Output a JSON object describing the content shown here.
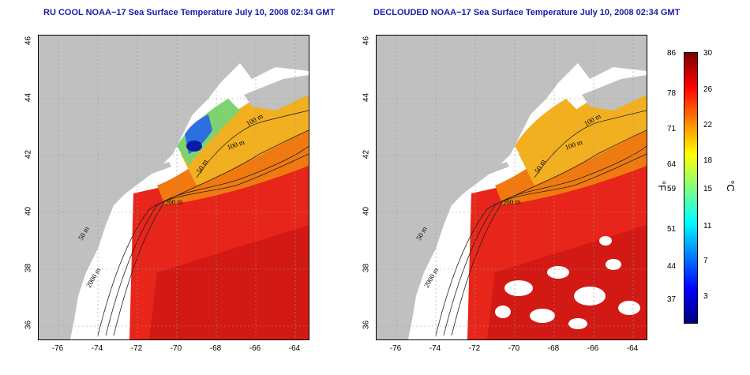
{
  "panels": [
    {
      "title": "RU COOL NOAA−17 Sea Surface Temperature July 10, 2008 02:34 GMT",
      "variant": "cool"
    },
    {
      "title": "DECLOUDED NOAA−17 Sea Surface Temperature July 10, 2008 02:34 GMT",
      "variant": "declouded"
    }
  ],
  "axes": {
    "lat_ticks": [
      "46",
      "44",
      "42",
      "40",
      "38",
      "36"
    ],
    "lon_ticks": [
      "-76",
      "-74",
      "-72",
      "-70",
      "-68",
      "-66",
      "-64"
    ]
  },
  "contours": {
    "left": [
      "100 m",
      "100 m",
      "50 m",
      "200 m",
      "50 m",
      "2000 m"
    ],
    "right": [
      "100 m",
      "100 m",
      "50 m",
      "200 m",
      "50 m",
      "2000 m"
    ]
  },
  "colorbar": {
    "fahrenheit": [
      "86",
      "78",
      "71",
      "64",
      "59",
      "51",
      "44",
      "37"
    ],
    "celsius": [
      "30",
      "26",
      "22",
      "18",
      "15",
      "11",
      "7",
      "3"
    ],
    "unit_f": "°F",
    "unit_c": "°C",
    "colors": [
      "#00007f",
      "#0000ff",
      "#0080ff",
      "#00ffff",
      "#80ff80",
      "#ffff00",
      "#ff8000",
      "#ff0000",
      "#7f0000"
    ]
  },
  "palette": {
    "land": "#c0c0c0",
    "cloud": "#ffffff",
    "warm": "#e8251a",
    "hot": "#c01010",
    "mid": "#f07a10",
    "shelf": "#f2b020",
    "cool": "#7ed36e",
    "cold": "#2c6fe0",
    "coldest": "#0a1aa8"
  }
}
